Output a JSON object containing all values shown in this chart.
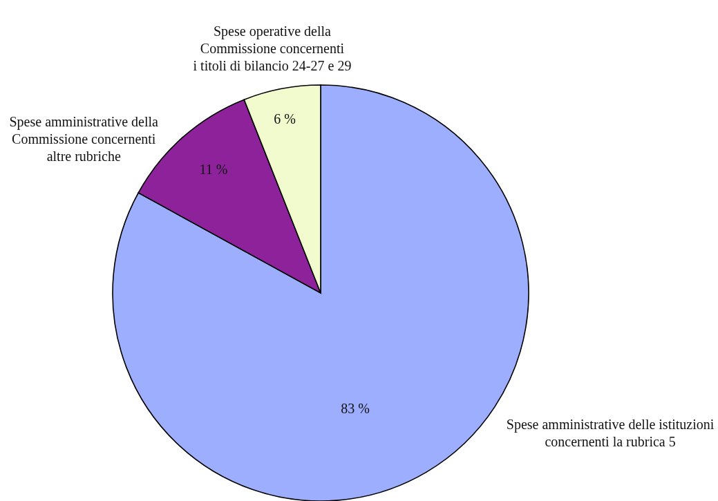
{
  "chart_data": {
    "type": "pie",
    "categories": [
      "Spese amministrative delle istituzioni\nconcernenti la rubrica 5",
      "Spese amministrative della\nCommissione concernenti\naltre rubriche",
      "Spese operative della\nCommissione concernenti\ni titoli di bilancio 24-27 e 29"
    ],
    "values": [
      83,
      11,
      6
    ],
    "colors": [
      "#9daefe",
      "#8d229b",
      "#f2fbce"
    ],
    "value_labels": [
      "83 %",
      "11 %",
      "6 %"
    ]
  }
}
